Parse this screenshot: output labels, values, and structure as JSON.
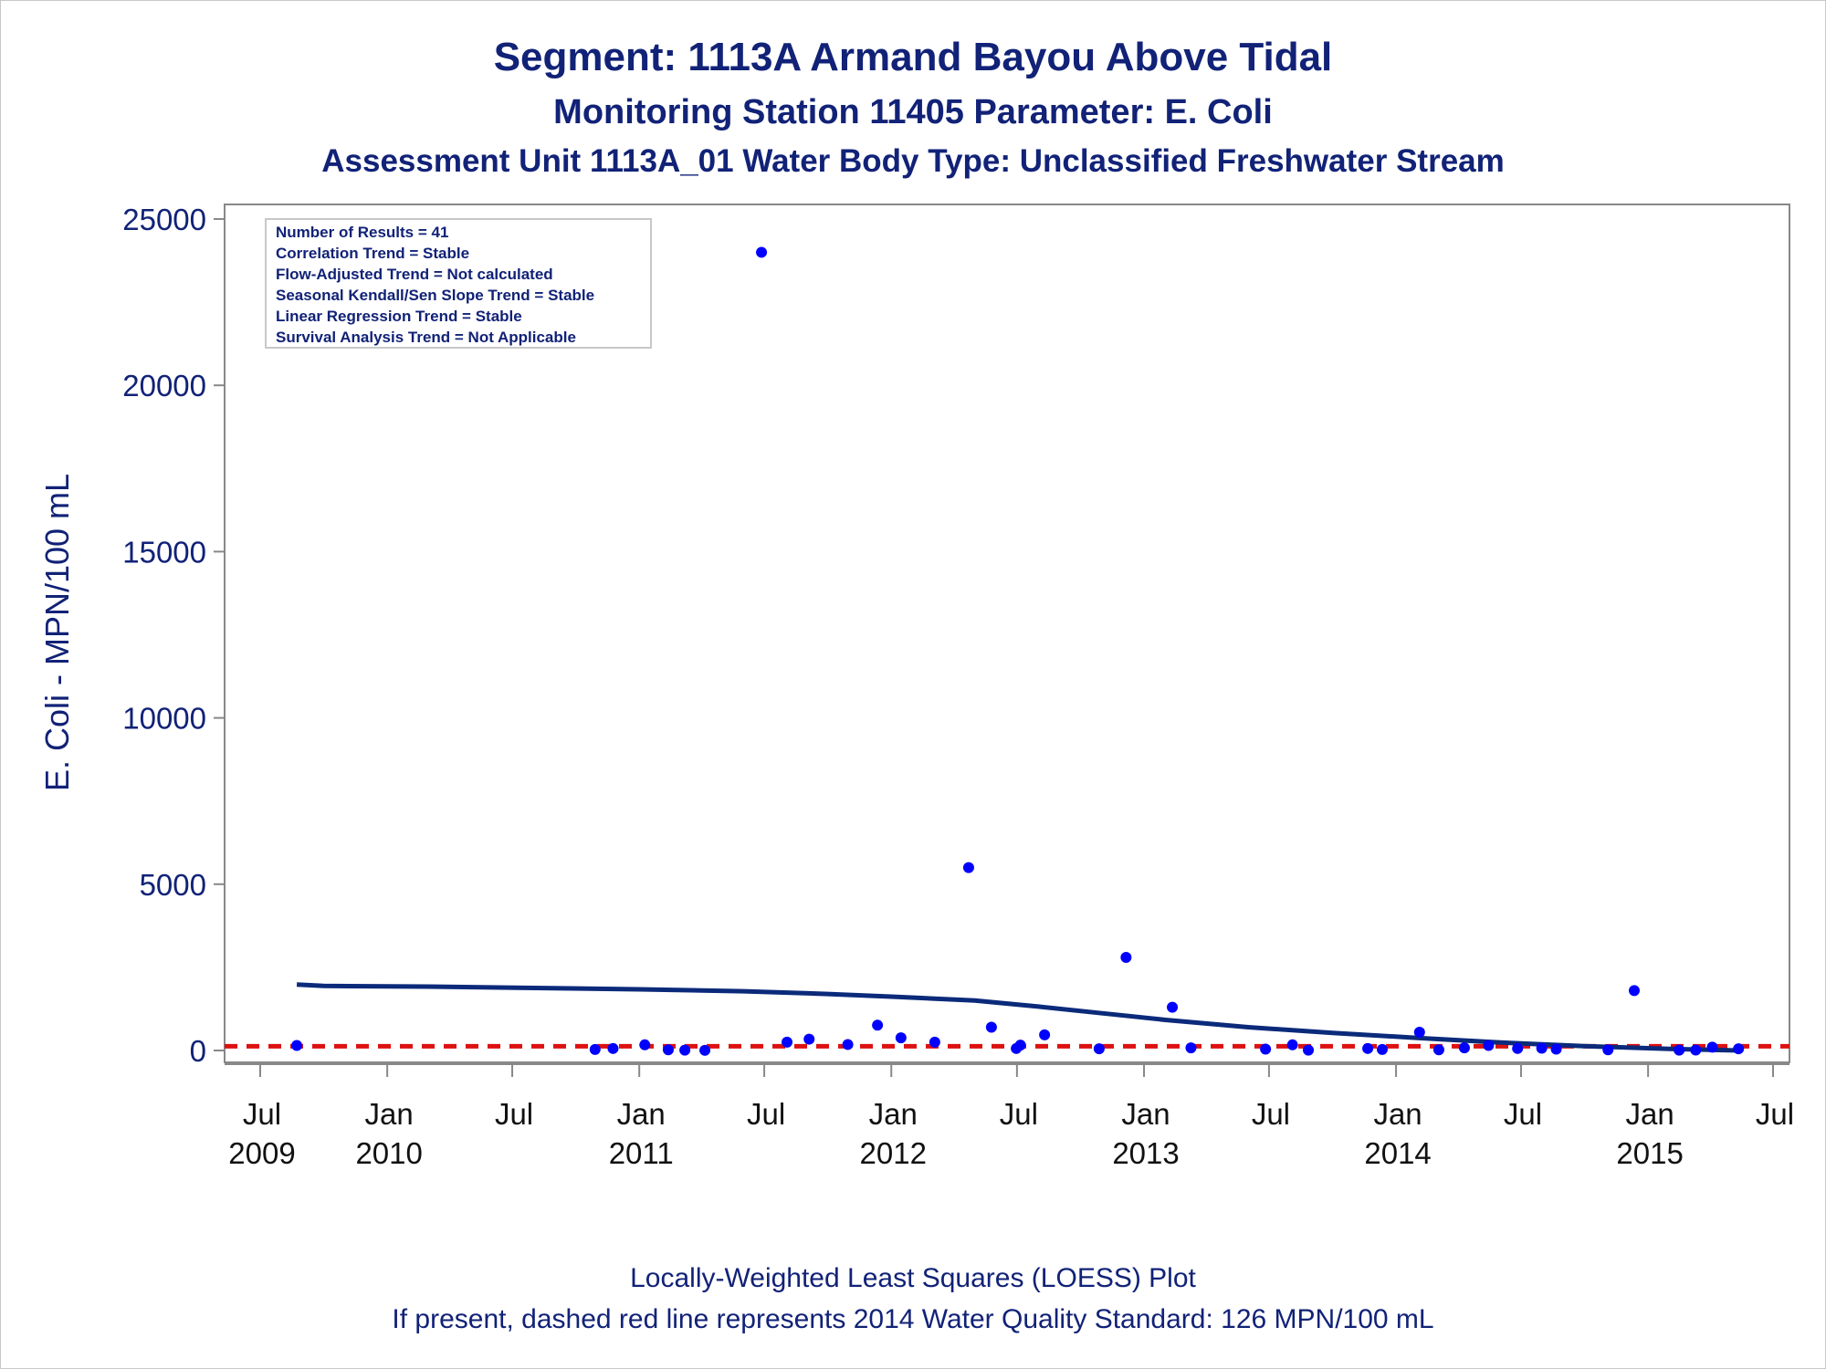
{
  "header": {
    "title": "Segment: 1113A  Armand Bayou Above Tidal",
    "subtitle": "Monitoring Station 11405 Parameter: E. Coli",
    "subtitle2": "Assessment Unit 1113A_01   Water Body Type: Unclassified Freshwater Stream"
  },
  "footer": {
    "line1": "Locally-Weighted Least Squares (LOESS) Plot",
    "line2": "If present, dashed red line represents 2014 Water Quality Standard: 126 MPN/100 mL"
  },
  "info_box": {
    "lines": [
      "Number of Results = 41",
      "Correlation Trend = Stable",
      "Flow-Adjusted Trend = Not calculated",
      "Seasonal Kendall/Sen Slope Trend = Stable",
      "Linear Regression Trend = Stable",
      "Survival Analysis Trend = Not Applicable"
    ]
  },
  "colors": {
    "text": "#112277",
    "points": "#0000ff",
    "loess": "#0b2a7a",
    "standard": "#dd1111",
    "axis": "#888888",
    "tick_text_x": "#111111"
  },
  "chart_data": {
    "type": "scatter",
    "ylabel": "E. Coli - MPN/100 mL",
    "xlabel": "",
    "ylim": [
      0,
      25000
    ],
    "xlim": [
      "2009-07-01",
      "2015-07-01"
    ],
    "y_ticks": [
      0,
      5000,
      10000,
      15000,
      20000,
      25000
    ],
    "x_ticks": [
      {
        "date": "2009-07-01",
        "label": "Jul",
        "year": "2009"
      },
      {
        "date": "2010-01-01",
        "label": "Jan",
        "year": "2010"
      },
      {
        "date": "2010-07-01",
        "label": "Jul",
        "year": ""
      },
      {
        "date": "2011-01-01",
        "label": "Jan",
        "year": "2011"
      },
      {
        "date": "2011-07-01",
        "label": "Jul",
        "year": ""
      },
      {
        "date": "2012-01-01",
        "label": "Jan",
        "year": "2012"
      },
      {
        "date": "2012-07-01",
        "label": "Jul",
        "year": ""
      },
      {
        "date": "2013-01-01",
        "label": "Jan",
        "year": "2013"
      },
      {
        "date": "2013-07-01",
        "label": "Jul",
        "year": ""
      },
      {
        "date": "2014-01-01",
        "label": "Jan",
        "year": "2014"
      },
      {
        "date": "2014-07-01",
        "label": "Jul",
        "year": ""
      },
      {
        "date": "2015-01-01",
        "label": "Jan",
        "year": "2015"
      },
      {
        "date": "2015-07-01",
        "label": "Jul",
        "year": ""
      }
    ],
    "grid": false,
    "standard_line": {
      "value": 126
    },
    "series": [
      {
        "type": "scatter",
        "points": [
          {
            "x": "2009-08-23",
            "y": 150
          },
          {
            "x": "2010-10-29",
            "y": 30
          },
          {
            "x": "2010-11-24",
            "y": 60
          },
          {
            "x": "2011-01-09",
            "y": 170
          },
          {
            "x": "2011-02-12",
            "y": 20
          },
          {
            "x": "2011-03-08",
            "y": 10
          },
          {
            "x": "2011-04-06",
            "y": 5
          },
          {
            "x": "2011-06-27",
            "y": 24000
          },
          {
            "x": "2011-08-03",
            "y": 250
          },
          {
            "x": "2011-09-04",
            "y": 340
          },
          {
            "x": "2011-10-30",
            "y": 180
          },
          {
            "x": "2011-12-12",
            "y": 760
          },
          {
            "x": "2012-01-15",
            "y": 380
          },
          {
            "x": "2012-03-04",
            "y": 250
          },
          {
            "x": "2012-04-22",
            "y": 5500
          },
          {
            "x": "2012-05-25",
            "y": 700
          },
          {
            "x": "2012-06-30",
            "y": 60
          },
          {
            "x": "2012-07-06",
            "y": 160
          },
          {
            "x": "2012-08-10",
            "y": 470
          },
          {
            "x": "2012-10-28",
            "y": 50
          },
          {
            "x": "2012-12-06",
            "y": 2800
          },
          {
            "x": "2013-02-11",
            "y": 1300
          },
          {
            "x": "2013-03-10",
            "y": 80
          },
          {
            "x": "2013-06-26",
            "y": 40
          },
          {
            "x": "2013-08-04",
            "y": 170
          },
          {
            "x": "2013-08-27",
            "y": 10
          },
          {
            "x": "2013-11-21",
            "y": 60
          },
          {
            "x": "2013-12-12",
            "y": 30
          },
          {
            "x": "2014-02-04",
            "y": 550
          },
          {
            "x": "2014-03-04",
            "y": 20
          },
          {
            "x": "2014-04-10",
            "y": 80
          },
          {
            "x": "2014-05-15",
            "y": 150
          },
          {
            "x": "2014-06-26",
            "y": 60
          },
          {
            "x": "2014-07-31",
            "y": 70
          },
          {
            "x": "2014-08-21",
            "y": 40
          },
          {
            "x": "2014-11-04",
            "y": 20
          },
          {
            "x": "2014-12-12",
            "y": 1800
          },
          {
            "x": "2015-02-15",
            "y": 10
          },
          {
            "x": "2015-03-11",
            "y": 15
          },
          {
            "x": "2015-04-04",
            "y": 100
          },
          {
            "x": "2015-05-12",
            "y": 50
          }
        ]
      },
      {
        "type": "line",
        "points": [
          {
            "x": "2009-08-23",
            "y": 1980
          },
          {
            "x": "2009-10-01",
            "y": 1940
          },
          {
            "x": "2010-03-01",
            "y": 1920
          },
          {
            "x": "2010-08-01",
            "y": 1880
          },
          {
            "x": "2011-01-01",
            "y": 1840
          },
          {
            "x": "2011-06-01",
            "y": 1780
          },
          {
            "x": "2011-10-01",
            "y": 1700
          },
          {
            "x": "2012-01-01",
            "y": 1620
          },
          {
            "x": "2012-05-01",
            "y": 1500
          },
          {
            "x": "2012-08-01",
            "y": 1320
          },
          {
            "x": "2012-11-01",
            "y": 1120
          },
          {
            "x": "2013-02-01",
            "y": 920
          },
          {
            "x": "2013-06-01",
            "y": 700
          },
          {
            "x": "2013-10-01",
            "y": 530
          },
          {
            "x": "2014-02-01",
            "y": 380
          },
          {
            "x": "2014-06-01",
            "y": 240
          },
          {
            "x": "2014-10-01",
            "y": 130
          },
          {
            "x": "2015-02-01",
            "y": 50
          },
          {
            "x": "2015-05-12",
            "y": 0
          }
        ]
      }
    ]
  }
}
